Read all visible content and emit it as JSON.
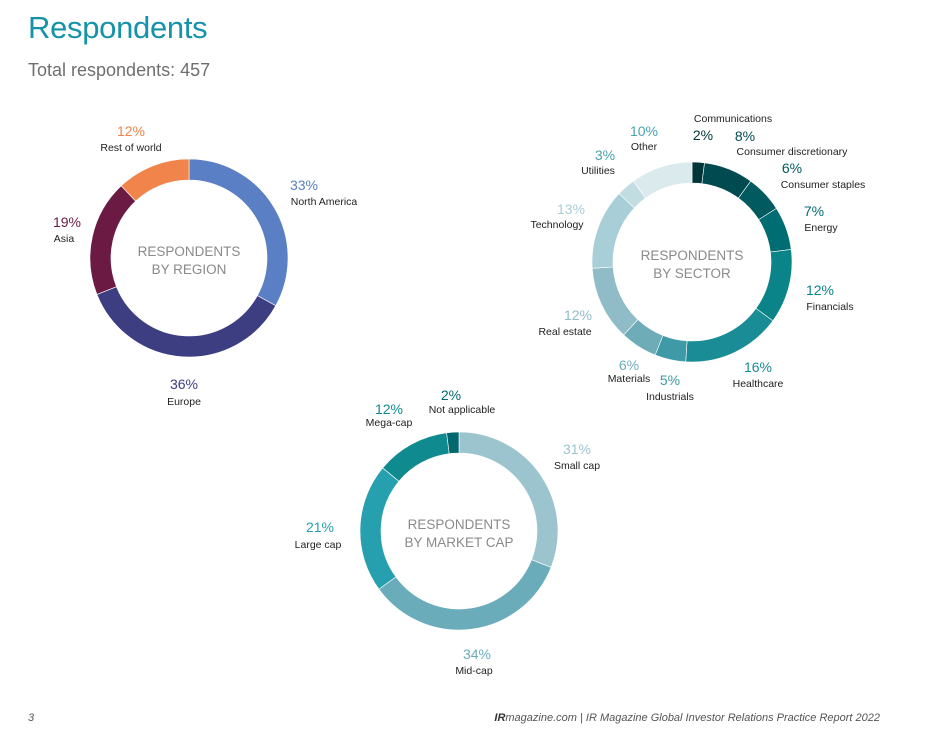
{
  "page": {
    "title": "Respondents",
    "subtitle": "Total respondents: 457",
    "page_number": "3",
    "footer_brand": "IR",
    "footer_source": "magazine.com | IR Magazine Global Investor Relations Practice Report 2022"
  },
  "chart_data": [
    {
      "type": "pie",
      "title": "RESPONDENTS BY REGION",
      "title_lines": [
        "RESPONDENTS",
        "BY REGION"
      ],
      "slices": [
        {
          "label": "North America",
          "value": 33,
          "pct": "33%",
          "color": "#5b7fc4"
        },
        {
          "label": "Europe",
          "value": 36,
          "pct": "36%",
          "color": "#3d3d82"
        },
        {
          "label": "Asia",
          "value": 19,
          "pct": "19%",
          "color": "#6b1a44"
        },
        {
          "label": "Rest of world",
          "value": 12,
          "pct": "12%",
          "color": "#f0844a"
        }
      ]
    },
    {
      "type": "pie",
      "title": "RESPONDENTS BY SECTOR",
      "title_lines": [
        "RESPONDENTS",
        "BY SECTOR"
      ],
      "slices": [
        {
          "label": "Communications",
          "value": 2,
          "pct": "2%",
          "color": "#00353a"
        },
        {
          "label": "Consumer discretionary",
          "value": 8,
          "pct": "8%",
          "color": "#004a50"
        },
        {
          "label": "Consumer staples",
          "value": 6,
          "pct": "6%",
          "color": "#005a60"
        },
        {
          "label": "Energy",
          "value": 7,
          "pct": "7%",
          "color": "#006d73"
        },
        {
          "label": "Financials",
          "value": 12,
          "pct": "12%",
          "color": "#0a8488"
        },
        {
          "label": "Healthcare",
          "value": 16,
          "pct": "16%",
          "color": "#198c96"
        },
        {
          "label": "Industrials",
          "value": 5,
          "pct": "5%",
          "color": "#3d9aa6"
        },
        {
          "label": "Materials",
          "value": 6,
          "pct": "6%",
          "color": "#6eadb8"
        },
        {
          "label": "Real estate",
          "value": 12,
          "pct": "12%",
          "color": "#8fbcc6"
        },
        {
          "label": "Technology",
          "value": 13,
          "pct": "13%",
          "color": "#a8ced8"
        },
        {
          "label": "Utilities",
          "value": 3,
          "pct": "3%",
          "color": "#c2dde2"
        },
        {
          "label": "Other",
          "value": 10,
          "pct": "10%",
          "color": "#dbeaed"
        }
      ]
    },
    {
      "type": "pie",
      "title": "RESPONDENTS BY MARKET CAP",
      "title_lines": [
        "RESPONDENTS",
        "BY MARKET CAP"
      ],
      "slices": [
        {
          "label": "Small cap",
          "value": 31,
          "pct": "31%",
          "color": "#9cc4cf"
        },
        {
          "label": "Mid-cap",
          "value": 34,
          "pct": "34%",
          "color": "#6aacba"
        },
        {
          "label": "Large cap",
          "value": 21,
          "pct": "21%",
          "color": "#26a0ae"
        },
        {
          "label": "Mega-cap",
          "value": 12,
          "pct": "12%",
          "color": "#0f8a8e"
        },
        {
          "label": "Not applicable",
          "value": 2,
          "pct": "2%",
          "color": "#00686e"
        }
      ]
    }
  ]
}
